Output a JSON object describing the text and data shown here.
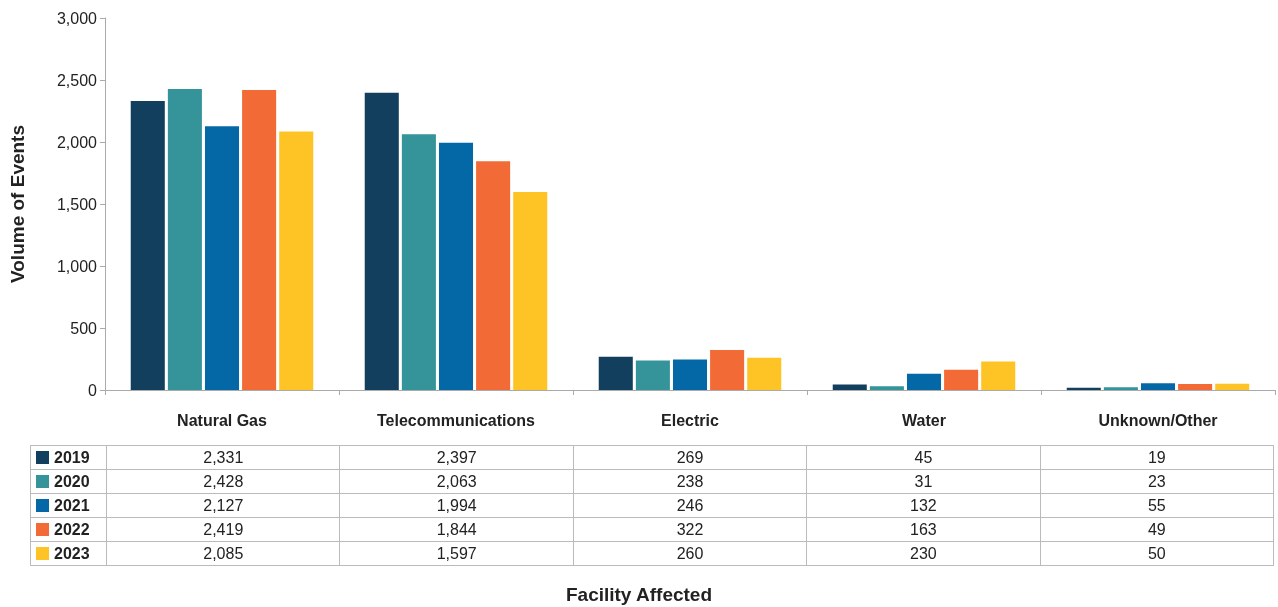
{
  "chart_data": {
    "type": "bar",
    "annotations": [
      "Facility Affected"
    ],
    "ylabel": "Volume of Events",
    "categories": [
      "Natural Gas",
      "Telecommunications",
      "Electric",
      "Water",
      "Unknown/Other"
    ],
    "series": [
      {
        "name": "2019",
        "color": "#123f5e",
        "values": [
          2331,
          2397,
          269,
          45,
          19
        ],
        "value_labels": [
          "2,331",
          "2,397",
          "269",
          "45",
          "19"
        ]
      },
      {
        "name": "2020",
        "color": "#35939a",
        "values": [
          2428,
          2063,
          238,
          31,
          23
        ],
        "value_labels": [
          "2,428",
          "2,063",
          "238",
          "31",
          "23"
        ]
      },
      {
        "name": "2021",
        "color": "#0568a6",
        "values": [
          2127,
          1994,
          246,
          132,
          55
        ],
        "value_labels": [
          "2,127",
          "1,994",
          "246",
          "132",
          "55"
        ]
      },
      {
        "name": "2022",
        "color": "#f26a35",
        "values": [
          2419,
          1844,
          322,
          163,
          49
        ],
        "value_labels": [
          "2,419",
          "1,844",
          "322",
          "163",
          "49"
        ]
      },
      {
        "name": "2023",
        "color": "#fec324",
        "values": [
          2085,
          1597,
          260,
          230,
          50
        ],
        "value_labels": [
          "2,085",
          "1,597",
          "260",
          "230",
          "50"
        ]
      }
    ],
    "ylim": [
      0,
      3000
    ],
    "yticks": [
      0,
      500,
      {
        "value": 1000,
        "label": "1,000"
      },
      {
        "value": 1500,
        "label": "1,500"
      },
      {
        "value": 2000,
        "label": "2,000"
      },
      {
        "value": 2500,
        "label": "2,500"
      },
      {
        "value": 3000,
        "label": "3,000"
      }
    ],
    "grid": false,
    "legend": "bottom"
  }
}
